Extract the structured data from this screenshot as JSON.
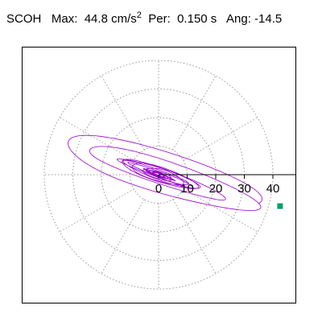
{
  "header": {
    "station": "SCOH",
    "max_label": "Max:",
    "max_value": "44.8",
    "max_unit": "cm/s",
    "max_unit_exp": "2",
    "per_label": "Per:",
    "per_value": "0.150 s",
    "ang_label": "Ang:",
    "ang_value": "-14.5"
  },
  "chart_data": {
    "type": "polar-orbit",
    "title": "SCOH  Max: 44.8 cm/s2  Per: 0.150 s  Ang: -14.5",
    "units": "cm/s2",
    "max": 44.8,
    "period_s": 0.15,
    "angle_deg": -14.5,
    "radial_ticks": [
      0,
      10,
      20,
      30,
      40
    ],
    "radial_tick_labels": [
      "0",
      "10",
      "20",
      "30",
      "40"
    ],
    "rings": [
      10,
      20,
      30,
      40
    ],
    "spoke_every_deg": 30,
    "grid": true,
    "peak_marker": {
      "x": 42.5,
      "y": -11.0
    },
    "orbit_color": "#9900cc",
    "marker_color": "#00a070",
    "grid_color": "#999999",
    "lim": 45
  }
}
